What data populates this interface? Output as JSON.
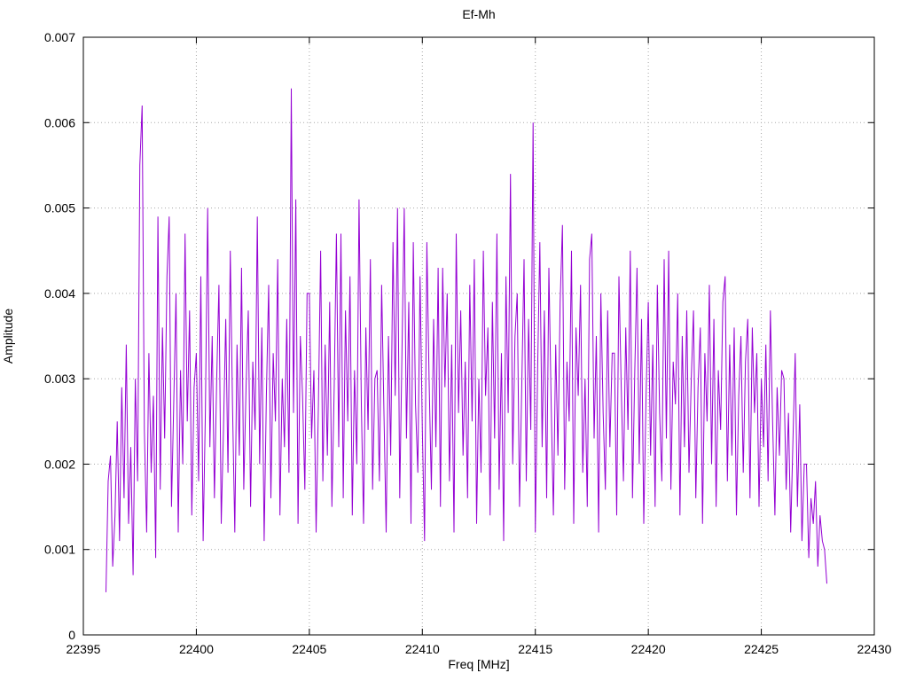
{
  "chart_data": {
    "type": "line",
    "title": "Ef-Mh",
    "xlabel": "Freq [MHz]",
    "ylabel": "Amplitude",
    "xlim": [
      22395,
      22430
    ],
    "ylim": [
      0,
      0.007
    ],
    "grid": "dotted",
    "legend": "none",
    "line_color": "#9400D3",
    "grid_color": "#a8a8a8",
    "border_color": "#000000",
    "x_ticks": {
      "values": [
        22395,
        22400,
        22405,
        22410,
        22415,
        22420,
        22425,
        22430
      ],
      "labels": [
        "22395",
        "22400",
        "22405",
        "22410",
        "22415",
        "22420",
        "22425",
        "22430"
      ]
    },
    "y_ticks": {
      "values": [
        0,
        0.001,
        0.002,
        0.003,
        0.004,
        0.005,
        0.006,
        0.007
      ],
      "labels": [
        "0",
        "0.001",
        "0.002",
        "0.003",
        "0.004",
        "0.005",
        "0.006",
        "0.007"
      ]
    },
    "series": [
      {
        "name": "Ef-Mh",
        "x_start": 22396.0,
        "x_step": 0.1,
        "value_scale": 0.0001,
        "values": [
          5,
          18,
          21,
          8,
          14,
          25,
          11,
          29,
          16,
          34,
          13,
          22,
          7,
          30,
          18,
          55,
          62,
          24,
          12,
          33,
          19,
          28,
          9,
          49,
          17,
          36,
          23,
          42,
          49,
          15,
          27,
          40,
          12,
          31,
          20,
          47,
          25,
          38,
          14,
          29,
          33,
          18,
          42,
          11,
          26,
          50,
          22,
          35,
          16,
          30,
          41,
          13,
          24,
          37,
          19,
          45,
          27,
          12,
          34,
          21,
          43,
          17,
          29,
          38,
          15,
          32,
          24,
          49,
          20,
          36,
          11,
          28,
          41,
          16,
          33,
          25,
          44,
          14,
          30,
          22,
          37,
          19,
          64,
          26,
          51,
          13,
          35,
          28,
          17,
          40,
          40,
          23,
          31,
          12,
          27,
          45,
          18,
          34,
          21,
          39,
          15,
          29,
          47,
          22,
          47,
          16,
          38,
          25,
          42,
          14,
          31,
          20,
          51,
          27,
          13,
          36,
          24,
          44,
          17,
          30,
          31,
          18,
          41,
          26,
          12,
          35,
          21,
          46,
          28,
          50,
          16,
          33,
          50,
          23,
          39,
          13,
          46,
          27,
          19,
          42,
          24,
          11,
          46,
          30,
          17,
          37,
          22,
          43,
          15,
          43,
          29,
          40,
          18,
          34,
          12,
          47,
          26,
          38,
          21,
          32,
          16,
          41,
          25,
          44,
          13,
          30,
          19,
          45,
          28,
          36,
          14,
          39,
          23,
          47,
          17,
          33,
          11,
          42,
          26,
          54,
          20,
          35,
          40,
          15,
          29,
          44,
          18,
          37,
          24,
          60,
          12,
          31,
          46,
          22,
          38,
          16,
          43,
          27,
          14,
          34,
          21,
          39,
          48,
          17,
          32,
          25,
          45,
          13,
          36,
          28,
          41,
          19,
          30,
          15,
          44,
          47,
          23,
          35,
          12,
          40,
          26,
          17,
          38,
          22,
          33,
          33,
          14,
          42,
          29,
          18,
          36,
          24,
          45,
          16,
          31,
          43,
          20,
          37,
          13,
          28,
          39,
          21,
          34,
          15,
          41,
          26,
          18,
          44,
          23,
          45,
          17,
          32,
          27,
          40,
          14,
          35,
          22,
          38,
          19,
          30,
          38,
          16,
          29,
          36,
          13,
          33,
          25,
          41,
          20,
          37,
          15,
          31,
          24,
          39,
          42,
          18,
          34,
          21,
          36,
          14,
          28,
          35,
          19,
          32,
          37,
          16,
          36,
          26,
          33,
          15,
          30,
          22,
          34,
          18,
          38,
          25,
          14,
          29,
          21,
          31,
          30,
          17,
          26,
          12,
          23,
          33,
          15,
          27,
          11,
          20,
          20,
          9,
          16,
          13,
          18,
          8,
          14,
          11,
          10,
          6
        ]
      }
    ]
  }
}
